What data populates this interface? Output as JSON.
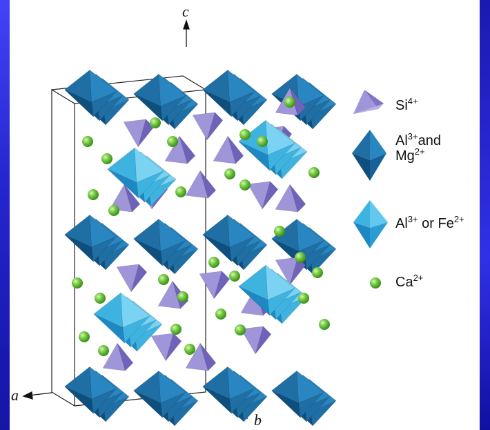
{
  "axes": {
    "c": "c",
    "a": "a",
    "b": "b"
  },
  "legend": [
    {
      "id": "si",
      "main": "Si",
      "sup": "4+",
      "rest": "",
      "main2": "",
      "sup2": "",
      "icon": "tetrahedron-icon",
      "color": "#9f95d9"
    },
    {
      "id": "almg",
      "main": "Al",
      "sup": "3+",
      "rest": "and",
      "main2": "Mg",
      "sup2": "2+",
      "icon": "dark-octahedron-icon",
      "color": "#1f6fa4"
    },
    {
      "id": "alfe",
      "main": "Al",
      "sup": "3+",
      "rest": " or Fe",
      "main2": "",
      "sup2": "2+",
      "icon": "light-octahedron-icon",
      "color": "#3fb3e0"
    },
    {
      "id": "ca",
      "main": "Ca",
      "sup": "2+",
      "rest": "",
      "main2": "",
      "sup2": "",
      "icon": "sphere-icon",
      "color": "#6dc63c"
    }
  ],
  "colors": {
    "tetra": "#9f95d9",
    "tetra_dark": "#6e63b8",
    "octa_dark": "#1f6fa4",
    "octa_dark_shade": "#0f4f7e",
    "octa_light": "#3fb3e0",
    "octa_light_shade": "#1f88c2",
    "calcium": "#6dc63c"
  }
}
